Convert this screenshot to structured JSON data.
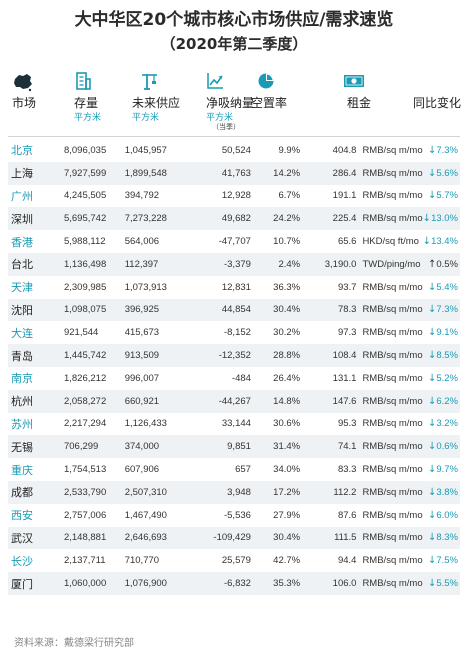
{
  "title": {
    "line1": "大中华区20个城市核心市场供应/需求速览",
    "line2": "（2020年第二季度）"
  },
  "headers": {
    "market": "市场",
    "stock": "存量",
    "stock_unit": "平方米",
    "future_supply": "未来供应",
    "future_unit": "平方米",
    "absorption": "净吸纳量",
    "absorption_unit": "平方米",
    "absorption_note": "（当季）",
    "vacancy": "空置率",
    "rent": "租金",
    "yoy": "同比变化"
  },
  "icons": {
    "market": "china-map-icon",
    "stock": "building-icon",
    "future_supply": "crane-icon",
    "absorption": "trend-chart-icon",
    "vacancy": "pie-chart-icon",
    "rent": "money-icon"
  },
  "colors": {
    "accent": "#1a9bb5",
    "row_alt": "#eef2f4"
  },
  "rows": [
    {
      "city": "北京",
      "stock": "8,096,035",
      "future": "1,045,957",
      "absorption": "50,524",
      "vacancy": "9.9%",
      "rent": "404.8",
      "unit": "RMB/sq m/mo",
      "change": "7.3%",
      "dir": "down",
      "arrow": "↓"
    },
    {
      "city": "上海",
      "stock": "7,927,599",
      "future": "1,899,548",
      "absorption": "41,763",
      "vacancy": "14.2%",
      "rent": "286.4",
      "unit": "RMB/sq m/mo",
      "change": "5.6%",
      "dir": "down",
      "arrow": "↓"
    },
    {
      "city": "广州",
      "stock": "4,245,505",
      "future": "394,792",
      "absorption": "12,928",
      "vacancy": "6.7%",
      "rent": "191.1",
      "unit": "RMB/sq m/mo",
      "change": "5.7%",
      "dir": "down",
      "arrow": "↓"
    },
    {
      "city": "深圳",
      "stock": "5,695,742",
      "future": "7,273,228",
      "absorption": "49,682",
      "vacancy": "24.2%",
      "rent": "225.4",
      "unit": "RMB/sq m/mo",
      "change": "13.0%",
      "dir": "down",
      "arrow": "↓"
    },
    {
      "city": "香港",
      "stock": "5,988,112",
      "future": "564,006",
      "absorption": "-47,707",
      "vacancy": "10.7%",
      "rent": "65.6",
      "unit": "HKD/sq ft/mo",
      "change": "13.4%",
      "dir": "down",
      "arrow": "↓"
    },
    {
      "city": "台北",
      "stock": "1,136,498",
      "future": "112,397",
      "absorption": "-3,379",
      "vacancy": "2.4%",
      "rent": "3,190.0",
      "unit": "TWD/ping/mo",
      "change": "0.5%",
      "dir": "up",
      "arrow": "↑"
    },
    {
      "city": "天津",
      "stock": "2,309,985",
      "future": "1,073,913",
      "absorption": "12,831",
      "vacancy": "36.3%",
      "rent": "93.7",
      "unit": "RMB/sq m/mo",
      "change": "5.4%",
      "dir": "down",
      "arrow": "↓"
    },
    {
      "city": "沈阳",
      "stock": "1,098,075",
      "future": "396,925",
      "absorption": "44,854",
      "vacancy": "30.4%",
      "rent": "78.3",
      "unit": "RMB/sq m/mo",
      "change": "7.3%",
      "dir": "down",
      "arrow": "↓"
    },
    {
      "city": "大连",
      "stock": "921,544",
      "future": "415,673",
      "absorption": "-8,152",
      "vacancy": "30.2%",
      "rent": "97.3",
      "unit": "RMB/sq m/mo",
      "change": "9.1%",
      "dir": "down",
      "arrow": "↓"
    },
    {
      "city": "青岛",
      "stock": "1,445,742",
      "future": "913,509",
      "absorption": "-12,352",
      "vacancy": "28.8%",
      "rent": "108.4",
      "unit": "RMB/sq m/mo",
      "change": "8.5%",
      "dir": "down",
      "arrow": "↓"
    },
    {
      "city": "南京",
      "stock": "1,826,212",
      "future": "996,007",
      "absorption": "-484",
      "vacancy": "26.4%",
      "rent": "131.1",
      "unit": "RMB/sq m/mo",
      "change": "5.2%",
      "dir": "down",
      "arrow": "↓"
    },
    {
      "city": "杭州",
      "stock": "2,058,272",
      "future": "660,921",
      "absorption": "-44,267",
      "vacancy": "14.8%",
      "rent": "147.6",
      "unit": "RMB/sq m/mo",
      "change": "6.2%",
      "dir": "down",
      "arrow": "↓"
    },
    {
      "city": "苏州",
      "stock": "2,217,294",
      "future": "1,126,433",
      "absorption": "33,144",
      "vacancy": "30.6%",
      "rent": "95.3",
      "unit": "RMB/sq m/mo",
      "change": "3.2%",
      "dir": "down",
      "arrow": "↓"
    },
    {
      "city": "无锡",
      "stock": "706,299",
      "future": "374,000",
      "absorption": "9,851",
      "vacancy": "31.4%",
      "rent": "74.1",
      "unit": "RMB/sq m/mo",
      "change": "0.6%",
      "dir": "down",
      "arrow": "↓"
    },
    {
      "city": "重庆",
      "stock": "1,754,513",
      "future": "607,906",
      "absorption": "657",
      "vacancy": "34.0%",
      "rent": "83.3",
      "unit": "RMB/sq m/mo",
      "change": "9.7%",
      "dir": "down",
      "arrow": "↓"
    },
    {
      "city": "成都",
      "stock": "2,533,790",
      "future": "2,507,310",
      "absorption": "3,948",
      "vacancy": "17.2%",
      "rent": "112.2",
      "unit": "RMB/sq m/mo",
      "change": "3.8%",
      "dir": "down",
      "arrow": "↓"
    },
    {
      "city": "西安",
      "stock": "2,757,006",
      "future": "1,467,490",
      "absorption": "-5,536",
      "vacancy": "27.9%",
      "rent": "87.6",
      "unit": "RMB/sq m/mo",
      "change": "6.0%",
      "dir": "down",
      "arrow": "↓"
    },
    {
      "city": "武汉",
      "stock": "2,148,881",
      "future": "2,646,693",
      "absorption": "-109,429",
      "vacancy": "30.4%",
      "rent": "111.5",
      "unit": "RMB/sq m/mo",
      "change": "8.3%",
      "dir": "down",
      "arrow": "↓"
    },
    {
      "city": "长沙",
      "stock": "2,137,711",
      "future": "710,770",
      "absorption": "25,579",
      "vacancy": "42.7%",
      "rent": "94.4",
      "unit": "RMB/sq m/mo",
      "change": "7.5%",
      "dir": "down",
      "arrow": "↓"
    },
    {
      "city": "厦门",
      "stock": "1,060,000",
      "future": "1,076,900",
      "absorption": "-6,832",
      "vacancy": "35.3%",
      "rent": "106.0",
      "unit": "RMB/sq m/mo",
      "change": "5.5%",
      "dir": "down",
      "arrow": "↓"
    }
  ],
  "footer": "资料来源：戴德梁行研究部"
}
